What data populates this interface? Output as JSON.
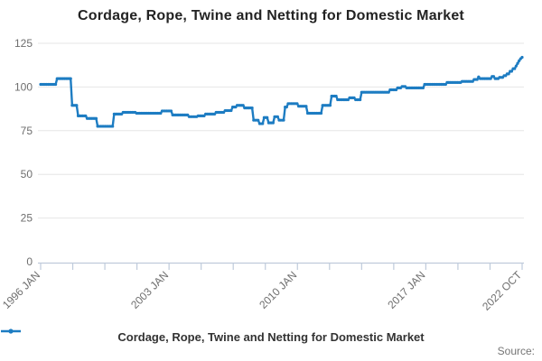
{
  "title": "Cordage, Rope, Twine and Netting for Domestic Market",
  "legend": {
    "label": "Cordage, Rope, Twine and Netting for Domestic Market"
  },
  "source_label": "Source:",
  "colors": {
    "line": "#1d7cc2",
    "grid": "#e6e6e6",
    "axis": "#bfcbdb",
    "tick_text": "#6e6e6e",
    "title_text": "#232323",
    "legend_text": "#333333",
    "source_text": "#757575"
  },
  "chart_data": {
    "type": "line",
    "title": "Cordage, Rope, Twine and Netting for Domestic Market",
    "xlabel": "",
    "ylabel": "",
    "ylim": [
      0,
      125
    ],
    "y_ticks": [
      0,
      25,
      50,
      75,
      100,
      125
    ],
    "grid": "horizontal",
    "legend_position": "bottom",
    "x_start": "1996 JAN",
    "x_end": "2022 OCT",
    "x_frequency": "monthly",
    "x_tick_count": 16,
    "x_tick_labels": [
      {
        "i": 0,
        "label": "1996 JAN"
      },
      {
        "i": 4,
        "label": "2003 JAN"
      },
      {
        "i": 8,
        "label": "2010 JAN"
      },
      {
        "i": 12,
        "label": "2017 JAN"
      },
      {
        "i": 15,
        "label": "2022 OCT"
      }
    ],
    "series": [
      {
        "name": "Cordage, Rope, Twine and Netting for Domestic Market",
        "values_rle_format": "[index value, run length in months] starting 1996 JAN, ending 2022 OCT (322 monthly points)",
        "values_rle": [
          [
            101.5,
            11
          ],
          [
            104.8,
            10
          ],
          [
            89.5,
            4
          ],
          [
            83.5,
            6
          ],
          [
            82,
            7
          ],
          [
            77.5,
            11
          ],
          [
            84.5,
            6
          ],
          [
            85.5,
            9
          ],
          [
            85,
            17
          ],
          [
            86.3,
            7
          ],
          [
            84,
            11
          ],
          [
            83,
            6
          ],
          [
            83.5,
            5
          ],
          [
            84.5,
            7
          ],
          [
            85.5,
            6
          ],
          [
            86.5,
            5
          ],
          [
            88.5,
            3
          ],
          [
            89.5,
            5
          ],
          [
            88,
            6
          ],
          [
            81,
            4
          ],
          [
            79,
            3
          ],
          [
            82.5,
            3
          ],
          [
            79.5,
            4
          ],
          [
            83,
            3
          ],
          [
            81,
            4
          ],
          [
            88.5,
            2
          ],
          [
            90.5,
            7
          ],
          [
            89,
            6
          ],
          [
            85,
            10
          ],
          [
            89.5,
            6
          ],
          [
            94.8,
            4
          ],
          [
            92.7,
            8
          ],
          [
            93.8,
            4
          ],
          [
            92.7,
            4
          ],
          [
            97,
            19
          ],
          [
            98.4,
            5
          ],
          [
            99.5,
            3
          ],
          [
            100.3,
            3
          ],
          [
            99.5,
            12
          ],
          [
            101.5,
            15
          ],
          [
            102.6,
            10
          ],
          [
            103.2,
            8
          ],
          [
            104.3,
            3
          ],
          [
            105.8,
            1
          ],
          [
            104.8,
            8
          ],
          [
            106,
            2
          ],
          [
            104.8,
            3
          ],
          [
            105.5,
            3
          ],
          [
            106.5,
            2
          ],
          [
            107.5,
            2
          ],
          [
            109,
            2
          ],
          [
            110.5,
            2
          ],
          [
            112,
            1
          ],
          [
            113.5,
            1
          ],
          [
            115,
            1
          ],
          [
            116.2,
            1
          ],
          [
            117,
            1
          ]
        ]
      }
    ]
  }
}
